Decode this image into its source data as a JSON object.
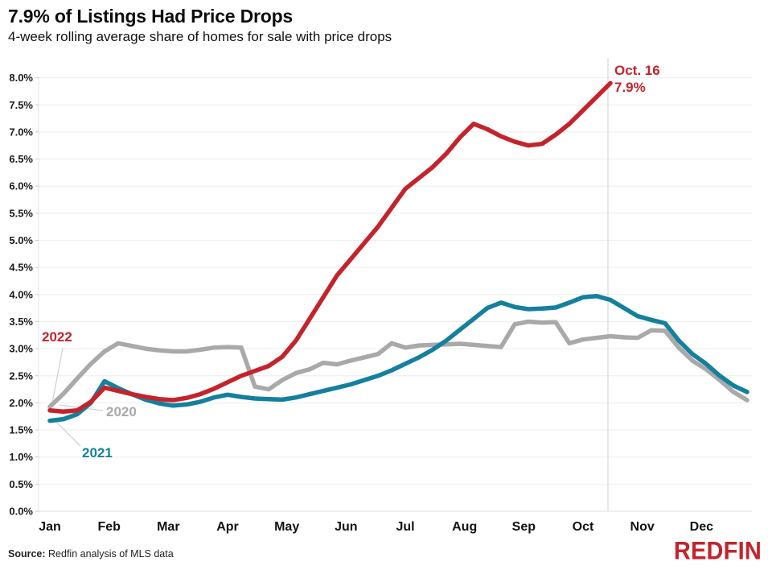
{
  "header": {
    "title": "7.9% of Listings Had Price Drops",
    "subtitle": "4-week rolling average share of homes for sale with price drops"
  },
  "footer": {
    "source_label": "Source:",
    "source_text": "Redfin analysis of MLS data",
    "brand": "REDFIN"
  },
  "colors": {
    "red_2022": "#c5232b",
    "teal_2021": "#14809e",
    "gray_2020": "#a9a9a9",
    "gridline": "#ededed",
    "marker_line": "#d9d9d9",
    "leader_line": "#cfcfcf"
  },
  "chart_data": {
    "type": "line",
    "title": "7.9% of Listings Had Price Drops",
    "subtitle": "4-week rolling average share of homes for sale with price drops",
    "x_unit": "weeks (Jan–Dec)",
    "months": [
      "Jan",
      "Feb",
      "Mar",
      "Apr",
      "May",
      "Jun",
      "Jul",
      "Aug",
      "Sep",
      "Oct",
      "Nov",
      "Dec"
    ],
    "ylim": [
      0,
      8
    ],
    "ytick_step": 0.5,
    "ytick_suffix": "%",
    "grid": true,
    "legend": "inline-labels-near-line-starts",
    "annotation": {
      "label": "Oct. 16",
      "value": "7.9%",
      "week": 41,
      "color": "#c5232b"
    },
    "series": [
      {
        "name": "2020",
        "color": "#a9a9a9",
        "values": [
          1.93,
          2.17,
          2.45,
          2.72,
          2.95,
          3.1,
          3.05,
          3.0,
          2.97,
          2.95,
          2.95,
          2.98,
          3.02,
          3.03,
          3.02,
          2.3,
          2.25,
          2.42,
          2.55,
          2.62,
          2.74,
          2.71,
          2.78,
          2.84,
          2.9,
          3.1,
          3.02,
          3.06,
          3.07,
          3.08,
          3.09,
          3.07,
          3.05,
          3.03,
          3.45,
          3.5,
          3.48,
          3.49,
          3.1,
          3.17,
          3.2,
          3.23,
          3.21,
          3.2,
          3.34,
          3.33,
          3.02,
          2.78,
          2.62,
          2.42,
          2.2,
          2.05
        ]
      },
      {
        "name": "2021",
        "color": "#14809e",
        "values": [
          1.67,
          1.7,
          1.79,
          2.0,
          2.4,
          2.27,
          2.16,
          2.06,
          1.99,
          1.95,
          1.97,
          2.02,
          2.1,
          2.15,
          2.11,
          2.08,
          2.07,
          2.06,
          2.1,
          2.16,
          2.22,
          2.28,
          2.34,
          2.42,
          2.5,
          2.6,
          2.72,
          2.84,
          2.98,
          3.15,
          3.35,
          3.55,
          3.75,
          3.85,
          3.77,
          3.73,
          3.74,
          3.76,
          3.85,
          3.95,
          3.97,
          3.9,
          3.75,
          3.6,
          3.53,
          3.47,
          3.15,
          2.9,
          2.72,
          2.5,
          2.32,
          2.2
        ]
      },
      {
        "name": "2022",
        "color": "#c5232b",
        "values": [
          1.86,
          1.84,
          1.86,
          2.02,
          2.28,
          2.22,
          2.16,
          2.11,
          2.07,
          2.05,
          2.09,
          2.16,
          2.26,
          2.38,
          2.5,
          2.59,
          2.68,
          2.85,
          3.15,
          3.55,
          3.95,
          4.35,
          4.65,
          4.95,
          5.25,
          5.6,
          5.95,
          6.15,
          6.35,
          6.6,
          6.9,
          7.15,
          7.05,
          6.92,
          6.82,
          6.75,
          6.78,
          6.95,
          7.15,
          7.4,
          7.65,
          7.9
        ]
      }
    ]
  }
}
